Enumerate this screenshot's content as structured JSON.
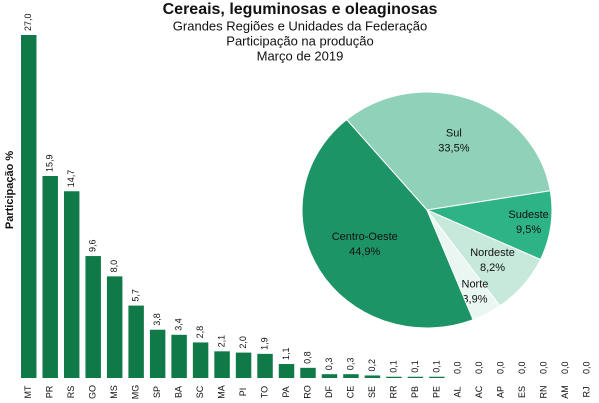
{
  "chart_data": [
    {
      "type": "bar",
      "title": "Cereais, leguminosas  e  oleaginosas",
      "subtitle": "Grandes  Regiões  e Unidades  da Federação",
      "subtitle2": "Participação na  produção",
      "subtitle3": "Março de 2019",
      "y_label": "Participação %",
      "color": "#0f7a48",
      "ylim": [
        0,
        27
      ],
      "categories": [
        "MT",
        "PR",
        "RS",
        "GO",
        "MS",
        "MG",
        "SP",
        "BA",
        "SC",
        "MA",
        "PI",
        "TO",
        "PA",
        "RO",
        "DF",
        "CE",
        "SE",
        "RR",
        "PB",
        "PE",
        "AL",
        "AC",
        "AP",
        "ES",
        "RN",
        "AM",
        "RJ"
      ],
      "values": [
        27.0,
        15.9,
        14.7,
        9.6,
        8.0,
        5.7,
        3.8,
        3.4,
        2.8,
        2.1,
        2.0,
        1.9,
        1.1,
        0.8,
        0.3,
        0.3,
        0.2,
        0.1,
        0.1,
        0.1,
        0.0,
        0.0,
        0.0,
        0.0,
        0.0,
        0.0,
        0.0
      ],
      "value_labels": [
        "27,0",
        "15,9",
        "14,7",
        "9,6",
        "8,0",
        "5,7",
        "3,8",
        "3,4",
        "2,8",
        "2,1",
        "2,0",
        "1,9",
        "1,1",
        "0,8",
        "0,3",
        "0,3",
        "0,2",
        "0,1",
        "0,1",
        "0,1",
        "0,0",
        "0,0",
        "0,0",
        "0,0",
        "0,0",
        "0,0",
        "0,0"
      ]
    },
    {
      "type": "pie",
      "categories": [
        "Sul",
        "Sudeste",
        "Nordeste",
        "Norte",
        "Centro-Oeste"
      ],
      "values": [
        33.5,
        9.5,
        8.2,
        3.9,
        44.9
      ],
      "value_labels": [
        "33,5%",
        "9,5%",
        "8,2%",
        "3,9%",
        "44,9%"
      ],
      "colors": [
        "#8fd1b9",
        "#2db386",
        "#c6e9dc",
        "#e9f6f1",
        "#1c9465"
      ]
    }
  ]
}
